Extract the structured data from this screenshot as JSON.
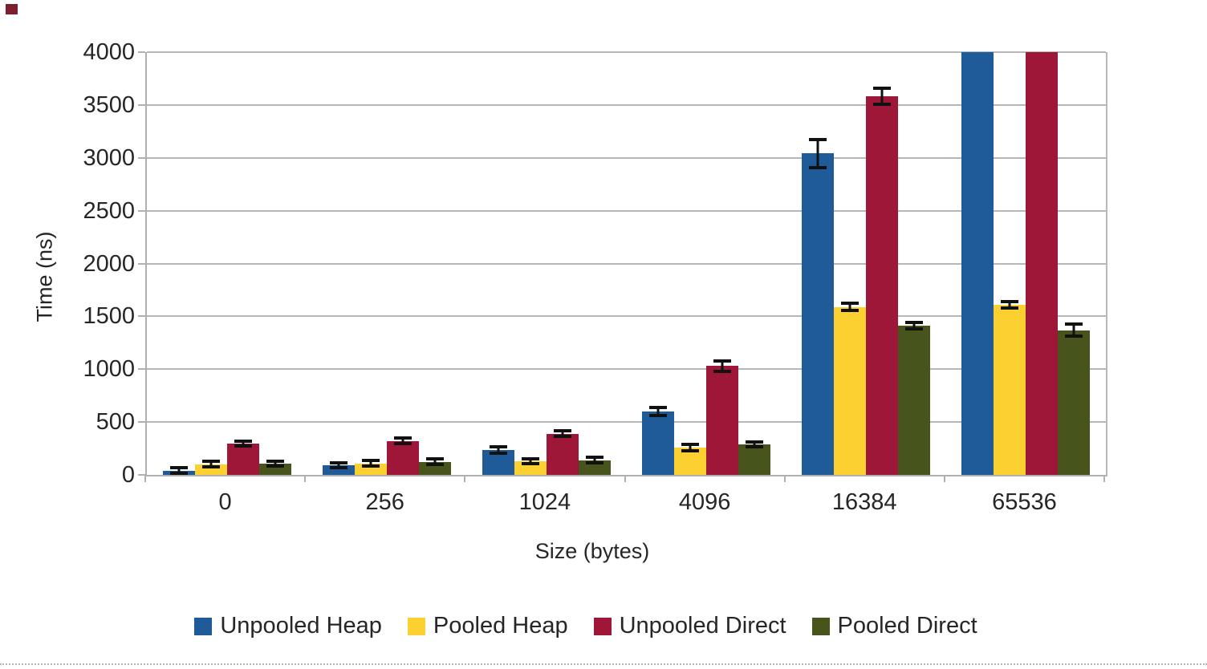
{
  "page": {
    "background": "#ffffff",
    "artifacts": {
      "corner_mark_color": "#7d1e2c",
      "bottom_dotted_line_color": "#b5b5b5"
    }
  },
  "chart_data": {
    "type": "bar",
    "title": "",
    "xlabel": "Size (bytes)",
    "ylabel": "Time (ns)",
    "categories": [
      "0",
      "256",
      "1024",
      "4096",
      "16384",
      "65536"
    ],
    "series": [
      {
        "name": "Unpooled Heap",
        "color": "#1f5b99",
        "values": [
          40,
          90,
          235,
          600,
          3040,
          4000
        ],
        "errors": [
          10,
          10,
          12,
          25,
          120,
          0
        ],
        "clipped": [
          false,
          false,
          false,
          false,
          false,
          true
        ]
      },
      {
        "name": "Pooled Heap",
        "color": "#fdd032",
        "values": [
          100,
          110,
          130,
          255,
          1590,
          1610
        ],
        "errors": [
          12,
          14,
          10,
          15,
          20,
          18
        ],
        "clipped": [
          false,
          false,
          false,
          false,
          false,
          false
        ]
      },
      {
        "name": "Unpooled Direct",
        "color": "#9e1638",
        "values": [
          295,
          320,
          390,
          1030,
          3580,
          4000
        ],
        "errors": [
          10,
          12,
          14,
          35,
          60,
          0
        ],
        "clipped": [
          false,
          false,
          false,
          false,
          false,
          true
        ]
      },
      {
        "name": "Pooled Direct",
        "color": "#47551d",
        "values": [
          105,
          125,
          140,
          290,
          1410,
          1370
        ],
        "errors": [
          8,
          8,
          10,
          8,
          15,
          45
        ],
        "clipped": [
          false,
          false,
          false,
          false,
          false,
          false
        ]
      }
    ],
    "ylim": [
      0,
      4000
    ],
    "ytick_step": 500,
    "grid": true,
    "gridline_color": "#b7b7b7",
    "errorbar_color": "#111111",
    "legend_position": "bottom"
  }
}
